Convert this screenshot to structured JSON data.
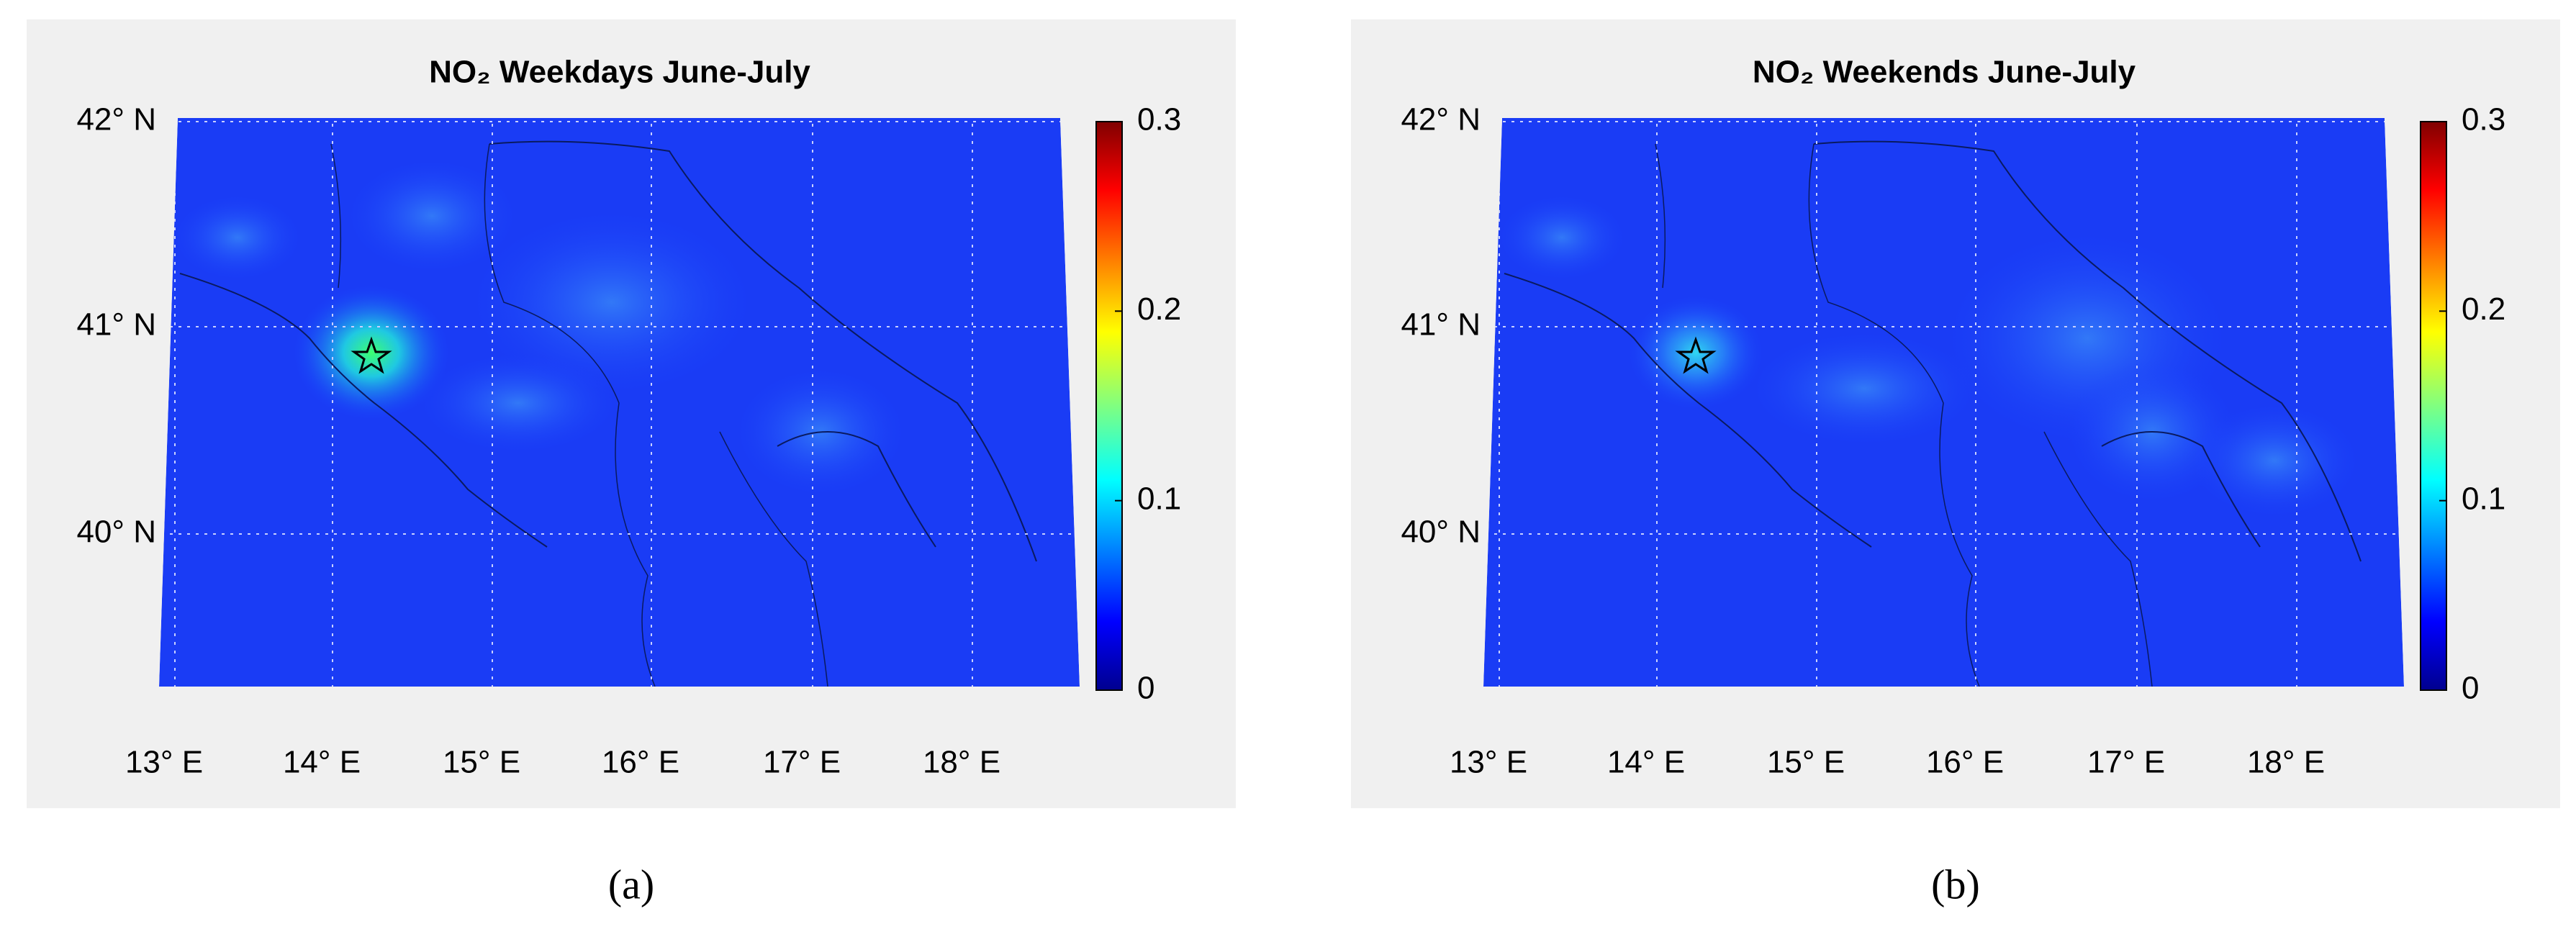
{
  "panels": [
    {
      "title": "NO₂ Weekdays June-July",
      "lat_labels": [
        "42° N",
        "41° N",
        "40° N"
      ],
      "lon_labels": [
        "13° E",
        "14° E",
        "15° E",
        "16° E",
        "17° E",
        "18° E"
      ],
      "colorbar": {
        "range": [
          0,
          0.3
        ],
        "ticks": [
          0,
          0.1,
          0.2,
          0.3
        ]
      },
      "caption": "(a)"
    },
    {
      "title": "NO₂ Weekends June-July",
      "lat_labels": [
        "42° N",
        "41° N",
        "40° N"
      ],
      "lon_labels": [
        "13° E",
        "14° E",
        "15° E",
        "16° E",
        "17° E",
        "18° E"
      ],
      "colorbar": {
        "range": [
          0,
          0.3
        ],
        "ticks": [
          0,
          0.1,
          0.2,
          0.3
        ]
      },
      "caption": "(b)"
    }
  ]
}
